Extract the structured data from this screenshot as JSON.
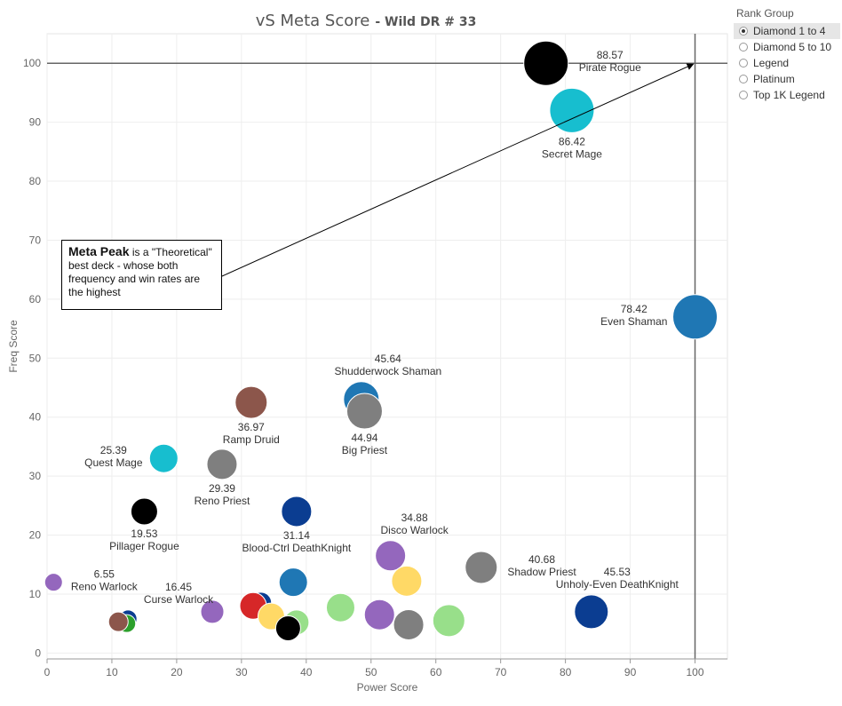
{
  "chart_data": {
    "type": "scatter",
    "title": "vS Meta Score",
    "subtitle": "- Wild DR # 33",
    "xlabel": "Power Score",
    "ylabel": "Freq Score",
    "xlim": [
      0,
      105
    ],
    "ylim": [
      -1,
      105
    ],
    "xticks": [
      0,
      10,
      20,
      30,
      40,
      50,
      60,
      70,
      80,
      90,
      100
    ],
    "yticks": [
      0,
      10,
      20,
      30,
      40,
      50,
      60,
      70,
      80,
      90,
      100
    ],
    "grid": true,
    "reference_lines": {
      "x": 100,
      "y": 100
    },
    "points": [
      {
        "x": 77,
        "y": 100,
        "r": 25,
        "color": "#000000",
        "label": "88.57\nPirate Rogue",
        "label_pos": "right"
      },
      {
        "x": 81,
        "y": 92,
        "r": 25,
        "color": "#17becf",
        "label": "86.42\nSecret Mage",
        "label_pos": "below"
      },
      {
        "x": 100,
        "y": 57,
        "r": 25,
        "color": "#1f77b4",
        "label": "78.42\nEven Shaman",
        "label_pos": "left"
      },
      {
        "x": 48.5,
        "y": 43,
        "r": 20,
        "color": "#1f77b4",
        "label": "45.64\nShudderwock Shaman",
        "label_pos": "above-right"
      },
      {
        "x": 49,
        "y": 41,
        "r": 20,
        "color": "#7f7f7f",
        "label": "44.94\nBig Priest",
        "label_pos": "below"
      },
      {
        "x": 31.5,
        "y": 42.5,
        "r": 18,
        "color": "#8c564b",
        "label": "36.97\nRamp Druid",
        "label_pos": "below"
      },
      {
        "x": 18,
        "y": 33,
        "r": 16,
        "color": "#17becf",
        "label": "25.39\nQuest Mage",
        "label_pos": "left"
      },
      {
        "x": 27,
        "y": 32,
        "r": 17,
        "color": "#7f7f7f",
        "label": "29.39\nReno Priest",
        "label_pos": "below"
      },
      {
        "x": 15,
        "y": 24,
        "r": 15,
        "color": "#000000",
        "label": "19.53\nPillager Rogue",
        "label_pos": "below"
      },
      {
        "x": 38.5,
        "y": 24,
        "r": 17,
        "color": "#0b3d91",
        "label": "31.14\nBlood-Ctrl DeathKnight",
        "label_pos": "below"
      },
      {
        "x": 53,
        "y": 16.5,
        "r": 17,
        "color": "#9467bd",
        "label": "34.88\nDisco Warlock",
        "label_pos": "above-right"
      },
      {
        "x": 67,
        "y": 14.5,
        "r": 18,
        "color": "#7f7f7f",
        "label": "40.68\nShadow Priest",
        "label_pos": "right"
      },
      {
        "x": 84,
        "y": 7,
        "r": 19,
        "color": "#0b3d91",
        "label": "45.53\nUnholy-Even DeathKnight",
        "label_pos": "above-right"
      },
      {
        "x": 1,
        "y": 12,
        "r": 10,
        "color": "#9467bd",
        "label": "6.55\nReno Warlock",
        "label_pos": "right"
      },
      {
        "x": 25.5,
        "y": 7,
        "r": 13,
        "color": "#9467bd",
        "label": "16.45\nCurse Warlock",
        "label_pos": "above-left"
      },
      {
        "x": 38,
        "y": 12,
        "r": 16,
        "color": "#1f77b4",
        "label": "",
        "label_pos": "none"
      },
      {
        "x": 55.5,
        "y": 12.2,
        "r": 17,
        "color": "#ffd966",
        "label": "",
        "label_pos": "none"
      },
      {
        "x": 12.5,
        "y": 5.8,
        "r": 10,
        "color": "#0b3d91",
        "label": "",
        "label_pos": "none"
      },
      {
        "x": 12.3,
        "y": 5.0,
        "r": 10,
        "color": "#2ca02c",
        "label": "",
        "label_pos": "none"
      },
      {
        "x": 11,
        "y": 5.3,
        "r": 11,
        "color": "#8c564b",
        "label": "",
        "label_pos": "none"
      },
      {
        "x": 33,
        "y": 8.5,
        "r": 12,
        "color": "#0b3d91",
        "label": "",
        "label_pos": "none"
      },
      {
        "x": 31.8,
        "y": 8,
        "r": 15,
        "color": "#d62728",
        "label": "",
        "label_pos": "none"
      },
      {
        "x": 34.6,
        "y": 6.2,
        "r": 15,
        "color": "#ffd966",
        "label": "",
        "label_pos": "none"
      },
      {
        "x": 38.5,
        "y": 5.2,
        "r": 14,
        "color": "#98df8a",
        "label": "",
        "label_pos": "none"
      },
      {
        "x": 37.2,
        "y": 4.2,
        "r": 14,
        "color": "#000000",
        "label": "",
        "label_pos": "none"
      },
      {
        "x": 45.3,
        "y": 7.7,
        "r": 16,
        "color": "#98df8a",
        "label": "",
        "label_pos": "none"
      },
      {
        "x": 51.3,
        "y": 6.5,
        "r": 17,
        "color": "#9467bd",
        "label": "",
        "label_pos": "none"
      },
      {
        "x": 55.8,
        "y": 4.8,
        "r": 17,
        "color": "#7f7f7f",
        "label": "",
        "label_pos": "none"
      },
      {
        "x": 62,
        "y": 5.5,
        "r": 18,
        "color": "#98df8a",
        "label": "",
        "label_pos": "none"
      }
    ]
  },
  "legend": {
    "title": "Rank Group",
    "items": [
      "Diamond 1 to 4",
      "Diamond 5 to 10",
      "Legend",
      "Platinum",
      "Top 1K Legend"
    ],
    "selected_index": 0
  },
  "annotation": {
    "bold": "Meta Peak",
    "text": " is a \"Theoretical\" best deck - whose both frequency and win rates are the highest"
  }
}
